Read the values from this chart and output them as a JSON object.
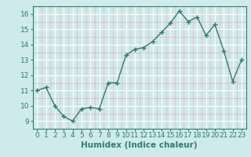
{
  "x": [
    0,
    1,
    2,
    3,
    4,
    5,
    6,
    7,
    8,
    9,
    10,
    11,
    12,
    13,
    14,
    15,
    16,
    17,
    18,
    19,
    20,
    21,
    22,
    23
  ],
  "y": [
    11.0,
    11.2,
    10.0,
    9.3,
    9.0,
    9.8,
    9.9,
    9.8,
    11.5,
    11.5,
    13.3,
    13.7,
    13.8,
    14.2,
    14.8,
    15.4,
    16.2,
    15.5,
    15.8,
    14.6,
    15.3,
    13.6,
    11.6,
    13.0
  ],
  "line_color": "#2e7d70",
  "marker": "+",
  "marker_size": 4,
  "bg_color": "#ceeaea",
  "grid_color_major": "#ffffff",
  "grid_color_minor": "#e8b8c0",
  "xlabel": "Humidex (Indice chaleur)",
  "ylabel": "",
  "xlim": [
    -0.5,
    23.5
  ],
  "ylim": [
    8.5,
    16.5
  ],
  "yticks": [
    9,
    10,
    11,
    12,
    13,
    14,
    15,
    16
  ],
  "xticks": [
    0,
    1,
    2,
    3,
    4,
    5,
    6,
    7,
    8,
    9,
    10,
    11,
    12,
    13,
    14,
    15,
    16,
    17,
    18,
    19,
    20,
    21,
    22,
    23
  ],
  "tick_label_fontsize": 6.5,
  "xlabel_fontsize": 7.5,
  "line_width": 1.0
}
